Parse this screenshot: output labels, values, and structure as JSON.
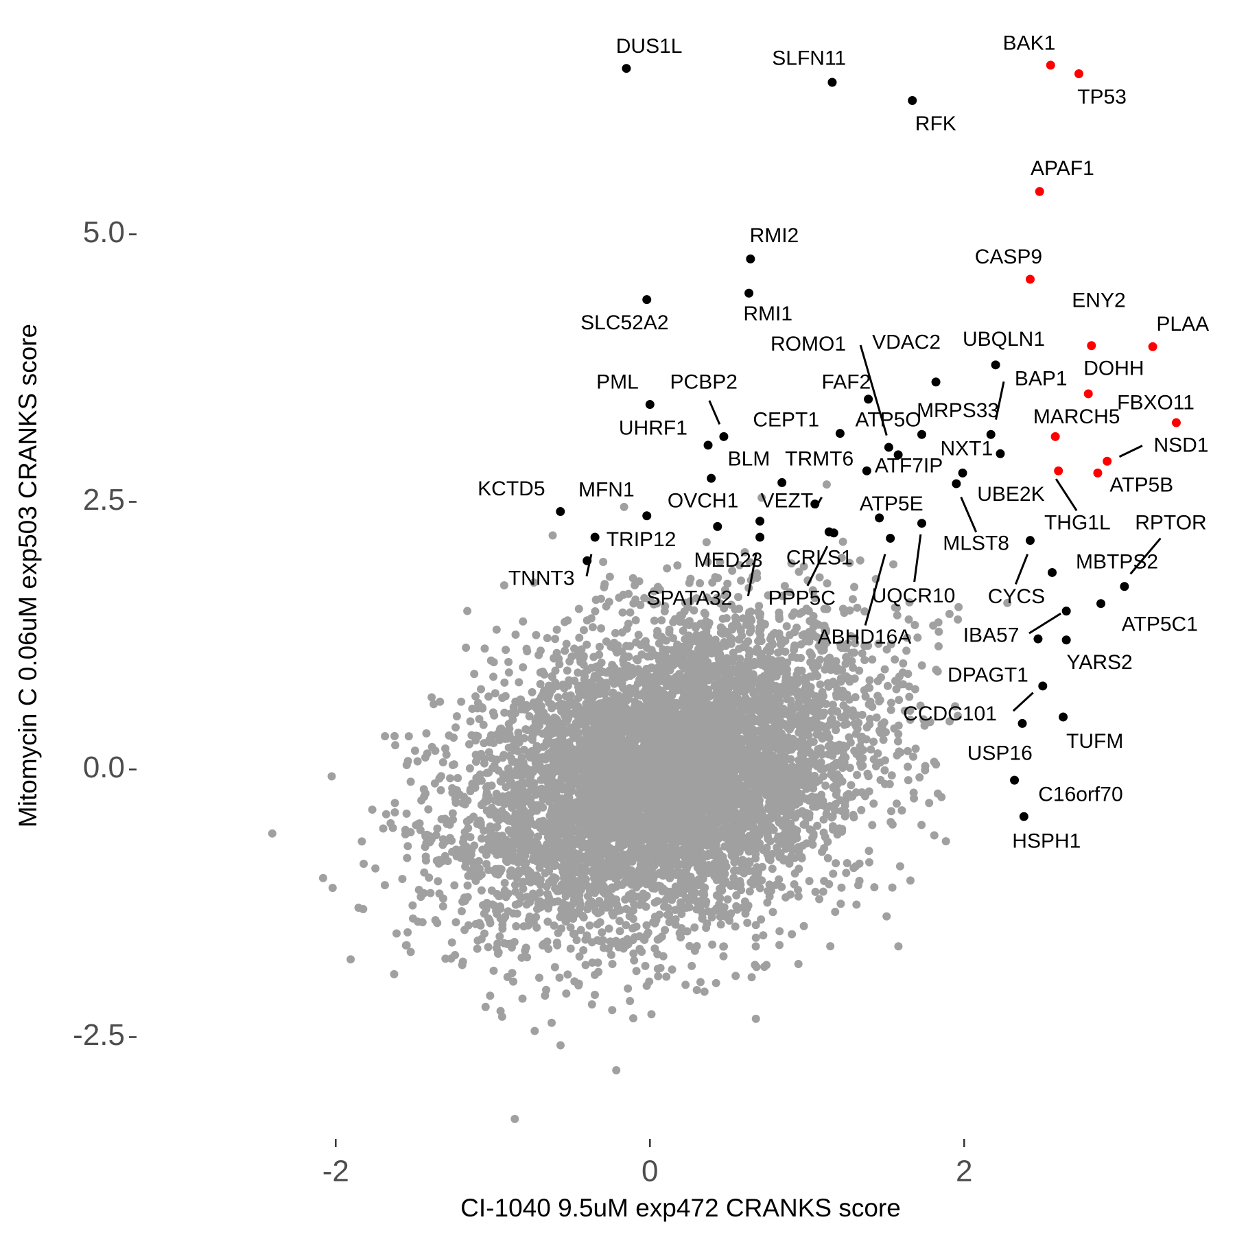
{
  "chart_data": {
    "type": "scatter",
    "title": "",
    "xlabel": "CI-1040 9.5uM exp472 CRANKS score",
    "ylabel": "Mitomycin C 0.06uM exp503 CRANKS score",
    "xlim": [
      -3.2,
      3.65
    ],
    "ylim": [
      -3.2,
      6.8
    ],
    "x_ticks": [
      {
        "v": -2,
        "label": "-2"
      },
      {
        "v": 0,
        "label": "0"
      },
      {
        "v": 2,
        "label": "2"
      }
    ],
    "y_ticks": [
      {
        "v": -2.5,
        "label": "-2.5"
      },
      {
        "v": 0,
        "label": "0.0"
      },
      {
        "v": 2.5,
        "label": "2.5"
      },
      {
        "v": 5,
        "label": "5.0"
      }
    ],
    "grid": false,
    "colors": {
      "background_points": "#a0a0a0",
      "highlight": "#ff0000",
      "labeled": "#000000"
    },
    "background_points": {
      "n": 7000,
      "mean": [
        0.1,
        -0.05
      ],
      "sd": [
        0.62,
        0.72
      ],
      "corr": 0.3
    },
    "labeled_points": [
      {
        "gene": "DUS1L",
        "x": -0.15,
        "y": 6.55,
        "group": "black"
      },
      {
        "gene": "SLFN11",
        "x": 1.16,
        "y": 6.42,
        "group": "black"
      },
      {
        "gene": "RFK",
        "x": 1.67,
        "y": 6.25,
        "group": "black"
      },
      {
        "gene": "BAK1",
        "x": 2.55,
        "y": 6.58,
        "group": "red"
      },
      {
        "gene": "TP53",
        "x": 2.73,
        "y": 6.5,
        "group": "red"
      },
      {
        "gene": "APAF1",
        "x": 2.48,
        "y": 5.4,
        "group": "red"
      },
      {
        "gene": "RMI2",
        "x": 0.64,
        "y": 4.77,
        "group": "black"
      },
      {
        "gene": "RMI1",
        "x": 0.63,
        "y": 4.45,
        "group": "black"
      },
      {
        "gene": "SLC52A2",
        "x": -0.02,
        "y": 4.39,
        "group": "black"
      },
      {
        "gene": "CASP9",
        "x": 2.42,
        "y": 4.58,
        "group": "red"
      },
      {
        "gene": "ENY2",
        "x": 2.81,
        "y": 3.96,
        "group": "red"
      },
      {
        "gene": "PLAA",
        "x": 3.2,
        "y": 3.95,
        "group": "red"
      },
      {
        "gene": "UBQLN1",
        "x": 2.2,
        "y": 3.78,
        "group": "black"
      },
      {
        "gene": "ROMO1",
        "x": 1.82,
        "y": 3.62,
        "group": "black"
      },
      {
        "gene": "VDAC2",
        "x": 1.58,
        "y": 2.94,
        "group": "black"
      },
      {
        "gene": "PML",
        "x": 0.0,
        "y": 3.41,
        "group": "black"
      },
      {
        "gene": "PCBP2",
        "x": 0.47,
        "y": 3.11,
        "group": "black"
      },
      {
        "gene": "FAF2",
        "x": 1.39,
        "y": 3.46,
        "group": "black"
      },
      {
        "gene": "BAP1",
        "x": 2.17,
        "y": 3.13,
        "group": "black"
      },
      {
        "gene": "DOHH",
        "x": 2.79,
        "y": 3.51,
        "group": "red"
      },
      {
        "gene": "UHRF1",
        "x": 0.37,
        "y": 3.03,
        "group": "black"
      },
      {
        "gene": "CEPT1",
        "x": 1.21,
        "y": 3.14,
        "group": "black"
      },
      {
        "gene": "ATP5O",
        "x": 1.52,
        "y": 3.01,
        "group": "black"
      },
      {
        "gene": "MRPS33",
        "x": 1.73,
        "y": 3.13,
        "group": "black"
      },
      {
        "gene": "FBXO11",
        "x": 3.35,
        "y": 3.24,
        "group": "red"
      },
      {
        "gene": "MARCH5",
        "x": 2.58,
        "y": 3.11,
        "group": "red"
      },
      {
        "gene": "NXT1",
        "x": 1.99,
        "y": 2.77,
        "group": "black"
      },
      {
        "gene": "NSD1",
        "x": 2.91,
        "y": 2.88,
        "group": "red"
      },
      {
        "gene": "BLM",
        "x": 0.39,
        "y": 2.72,
        "group": "black"
      },
      {
        "gene": "TRMT6",
        "x": 0.84,
        "y": 2.68,
        "group": "black"
      },
      {
        "gene": "ATF7IP",
        "x": 1.38,
        "y": 2.79,
        "group": "black"
      },
      {
        "gene": "ATP5B",
        "x": 2.85,
        "y": 2.77,
        "group": "red"
      },
      {
        "gene": "KCTD5",
        "x": -0.57,
        "y": 2.41,
        "group": "black"
      },
      {
        "gene": "MFN1",
        "x": -0.02,
        "y": 2.37,
        "group": "black"
      },
      {
        "gene": "UBE2K",
        "x": 2.23,
        "y": 2.95,
        "group": "black"
      },
      {
        "gene": "OVCH1",
        "x": 0.43,
        "y": 2.27,
        "group": "black"
      },
      {
        "gene": "VEZT",
        "x": 1.05,
        "y": 2.48,
        "group": "black"
      },
      {
        "gene": "ATP5E",
        "x": 1.46,
        "y": 2.35,
        "group": "black"
      },
      {
        "gene": "THG1L",
        "x": 2.6,
        "y": 2.79,
        "group": "red"
      },
      {
        "gene": "RPTOR",
        "x": 3.02,
        "y": 1.71,
        "group": "black"
      },
      {
        "gene": "TRIP12",
        "x": -0.35,
        "y": 2.17,
        "group": "black"
      },
      {
        "gene": "MLST8",
        "x": 1.95,
        "y": 2.67,
        "group": "black"
      },
      {
        "gene": "MED23",
        "x": 0.7,
        "y": 2.32,
        "group": "black"
      },
      {
        "gene": "CRLS1",
        "x": 1.14,
        "y": 2.22,
        "group": "black"
      },
      {
        "gene": "MBTPS2",
        "x": 2.56,
        "y": 1.84,
        "group": "black"
      },
      {
        "gene": "TNNT3",
        "x": -0.4,
        "y": 1.95,
        "group": "black"
      },
      {
        "gene": "SPATA32",
        "x": 0.7,
        "y": 2.17,
        "group": "black"
      },
      {
        "gene": "PPP5C",
        "x": 1.17,
        "y": 2.21,
        "group": "black"
      },
      {
        "gene": "UQCR10",
        "x": 1.73,
        "y": 2.3,
        "group": "black"
      },
      {
        "gene": "CYCS",
        "x": 2.42,
        "y": 2.14,
        "group": "black"
      },
      {
        "gene": "IBA57",
        "x": 2.65,
        "y": 1.48,
        "group": "black"
      },
      {
        "gene": "ATP5C1",
        "x": 2.87,
        "y": 1.55,
        "group": "black"
      },
      {
        "gene": "ABHD16A",
        "x": 1.53,
        "y": 2.16,
        "group": "black"
      },
      {
        "gene": "YARS2",
        "x": 2.65,
        "y": 1.21,
        "group": "black"
      },
      {
        "gene": "DPAGT1",
        "x": 2.5,
        "y": 0.78,
        "group": "black"
      },
      {
        "gene": "CCDC101",
        "x": 2.47,
        "y": 1.22,
        "group": "black"
      },
      {
        "gene": "TUFM",
        "x": 2.63,
        "y": 0.49,
        "group": "black"
      },
      {
        "gene": "USP16",
        "x": 2.37,
        "y": 0.43,
        "group": "black"
      },
      {
        "gene": "C16orf70",
        "x": 2.32,
        "y": -0.1,
        "group": "black"
      },
      {
        "gene": "HSPH1",
        "x": 2.38,
        "y": -0.44,
        "group": "black"
      }
    ]
  }
}
